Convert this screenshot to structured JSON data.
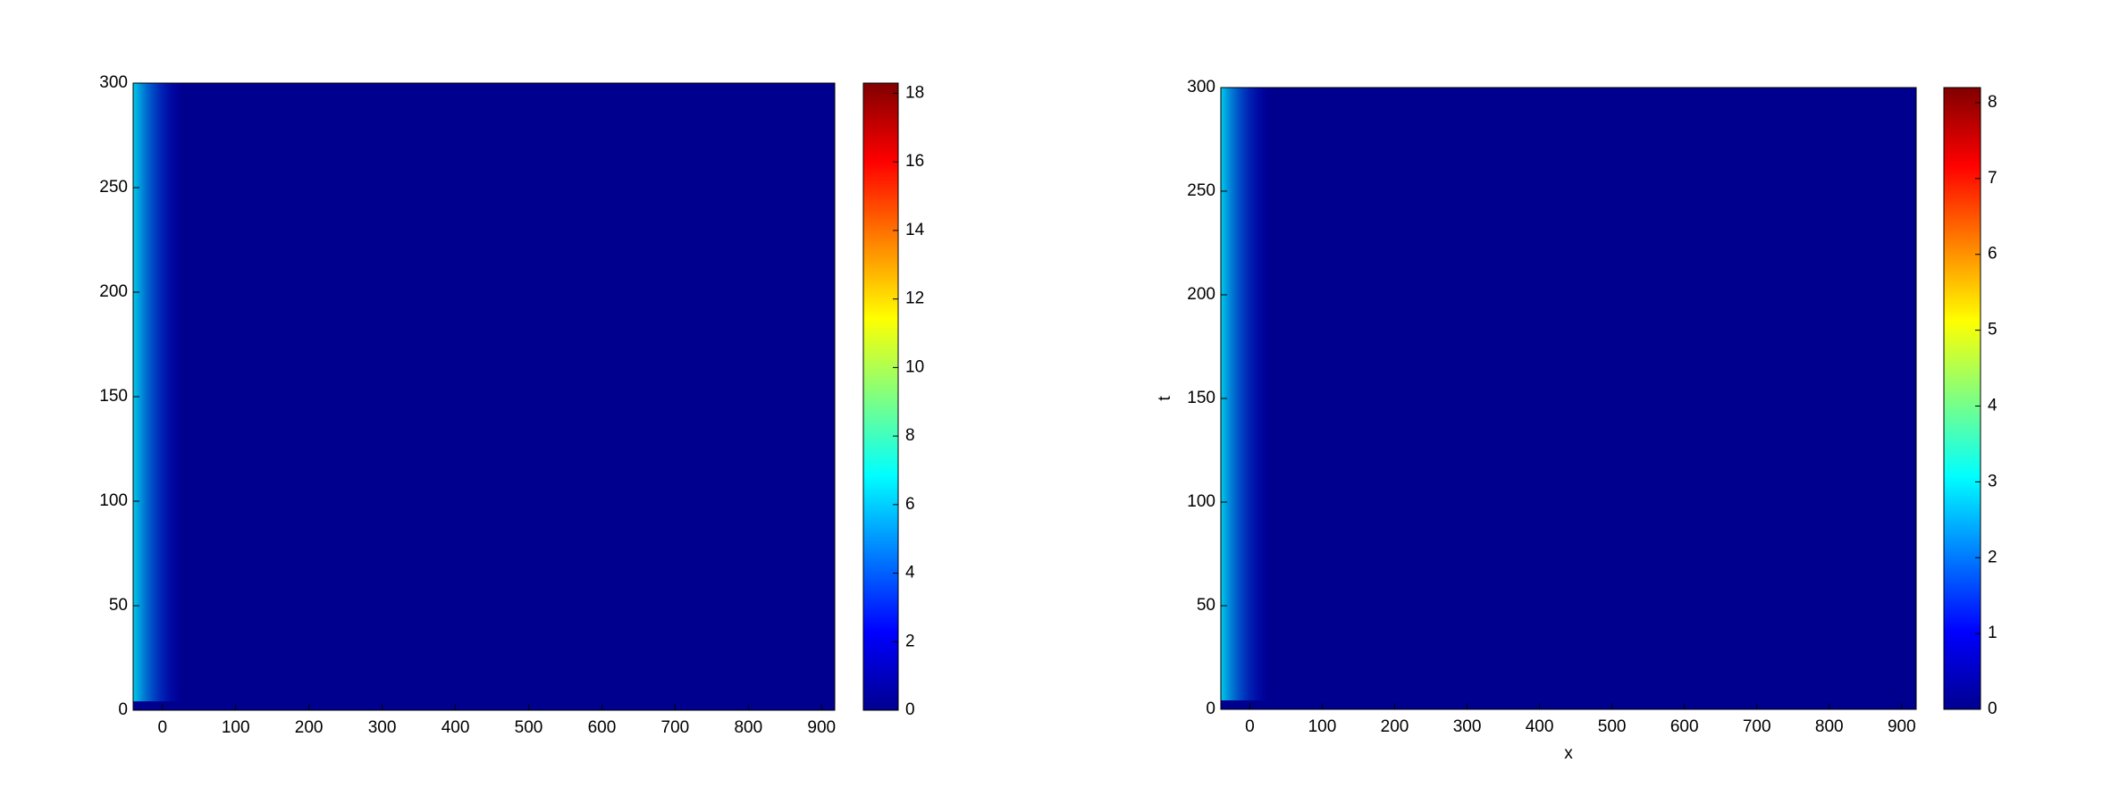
{
  "chart_data": [
    {
      "type": "heatmap",
      "xlim": [
        -40,
        918
      ],
      "xticks": [
        0,
        100,
        200,
        300,
        400,
        500,
        600,
        700,
        800,
        900
      ],
      "ylim": [
        0,
        300
      ],
      "yticks": [
        0,
        50,
        100,
        150,
        200,
        250,
        300
      ],
      "clim": [
        0,
        18.3
      ],
      "cticks": [
        0,
        2,
        4,
        6,
        8,
        10,
        12,
        14,
        16,
        18
      ],
      "colormap": [
        "#00008f",
        "#0000ff",
        "#0080ff",
        "#00ffff",
        "#80ff80",
        "#ffff00",
        "#ff8000",
        "#ff0000",
        "#800000"
      ]
    },
    {
      "type": "heatmap",
      "xlabel": "x",
      "ylabel": "t",
      "xlim": [
        -40,
        920
      ],
      "xticks": [
        0,
        100,
        200,
        300,
        400,
        500,
        600,
        700,
        800,
        900
      ],
      "ylim": [
        0,
        300
      ],
      "yticks": [
        0,
        50,
        100,
        150,
        200,
        250,
        300
      ],
      "clim": [
        0,
        8.2
      ],
      "cticks": [
        0,
        1,
        2,
        3,
        4,
        5,
        6,
        7,
        8
      ],
      "colormap": [
        "#00008f",
        "#0000ff",
        "#0080ff",
        "#00ffff",
        "#80ff80",
        "#ffff00",
        "#ff8000",
        "#ff0000",
        "#800000"
      ]
    }
  ]
}
